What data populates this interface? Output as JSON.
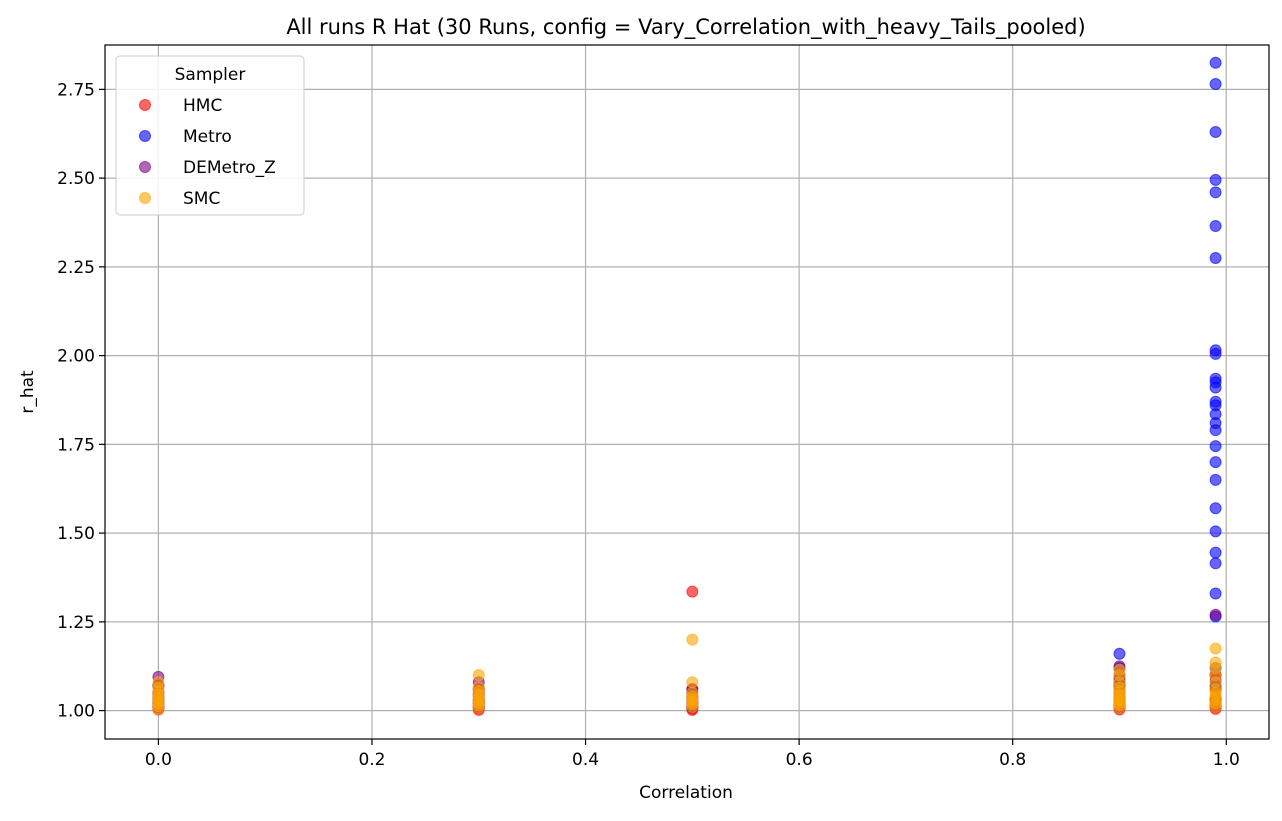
{
  "chart_data": {
    "type": "scatter",
    "title": "All runs R Hat (30 Runs, config = Vary_Correlation_with_heavy_Tails_pooled)",
    "xlabel": "Correlation",
    "ylabel": "r_hat",
    "xlim": [
      -0.05,
      1.04
    ],
    "ylim": [
      0.92,
      2.875
    ],
    "xticks": [
      0.0,
      0.2,
      0.4,
      0.6,
      0.8,
      1.0
    ],
    "xtick_labels": [
      "0.0",
      "0.2",
      "0.4",
      "0.6",
      "0.8",
      "1.0"
    ],
    "yticks": [
      1.0,
      1.25,
      1.5,
      1.75,
      2.0,
      2.25,
      2.5,
      2.75
    ],
    "ytick_labels": [
      "1.00",
      "1.25",
      "1.50",
      "1.75",
      "2.00",
      "2.25",
      "2.50",
      "2.75"
    ],
    "grid": true,
    "legend": {
      "title": "Sampler",
      "placement": "top-left"
    },
    "series": [
      {
        "name": "HMC",
        "color": "#ff0000",
        "points": [
          [
            0.0,
            1.003
          ],
          [
            0.0,
            1.008
          ],
          [
            0.0,
            1.012
          ],
          [
            0.0,
            1.018
          ],
          [
            0.0,
            1.025
          ],
          [
            0.0,
            1.04
          ],
          [
            0.3,
            1.002
          ],
          [
            0.3,
            1.007
          ],
          [
            0.3,
            1.012
          ],
          [
            0.3,
            1.02
          ],
          [
            0.3,
            1.03
          ],
          [
            0.3,
            1.05
          ],
          [
            0.5,
            1.002
          ],
          [
            0.5,
            1.006
          ],
          [
            0.5,
            1.012
          ],
          [
            0.5,
            1.02
          ],
          [
            0.5,
            1.03
          ],
          [
            0.5,
            1.06
          ],
          [
            0.5,
            1.335
          ],
          [
            0.9,
            1.003
          ],
          [
            0.9,
            1.008
          ],
          [
            0.9,
            1.015
          ],
          [
            0.9,
            1.025
          ],
          [
            0.9,
            1.04
          ],
          [
            0.9,
            1.07
          ],
          [
            0.99,
            1.005
          ],
          [
            0.99,
            1.012
          ],
          [
            0.99,
            1.02
          ],
          [
            0.99,
            1.035
          ],
          [
            0.99,
            1.06
          ],
          [
            0.99,
            1.1
          ]
        ]
      },
      {
        "name": "Metro",
        "color": "#0000ff",
        "points": [
          [
            0.0,
            1.01
          ],
          [
            0.0,
            1.02
          ],
          [
            0.0,
            1.035
          ],
          [
            0.0,
            1.05
          ],
          [
            0.0,
            1.07
          ],
          [
            0.3,
            1.01
          ],
          [
            0.3,
            1.02
          ],
          [
            0.3,
            1.03
          ],
          [
            0.3,
            1.045
          ],
          [
            0.3,
            1.06
          ],
          [
            0.5,
            1.01
          ],
          [
            0.5,
            1.02
          ],
          [
            0.5,
            1.035
          ],
          [
            0.5,
            1.05
          ],
          [
            0.9,
            1.01
          ],
          [
            0.9,
            1.02
          ],
          [
            0.9,
            1.035
          ],
          [
            0.9,
            1.05
          ],
          [
            0.9,
            1.07
          ],
          [
            0.9,
            1.09
          ],
          [
            0.9,
            1.12
          ],
          [
            0.9,
            1.16
          ],
          [
            0.99,
            1.03
          ],
          [
            0.99,
            1.07
          ],
          [
            0.99,
            1.12
          ],
          [
            0.99,
            1.265
          ],
          [
            0.99,
            1.33
          ],
          [
            0.99,
            1.415
          ],
          [
            0.99,
            1.445
          ],
          [
            0.99,
            1.505
          ],
          [
            0.99,
            1.57
          ],
          [
            0.99,
            1.65
          ],
          [
            0.99,
            1.7
          ],
          [
            0.99,
            1.745
          ],
          [
            0.99,
            1.79
          ],
          [
            0.99,
            1.81
          ],
          [
            0.99,
            1.835
          ],
          [
            0.99,
            1.86
          ],
          [
            0.99,
            1.87
          ],
          [
            0.99,
            1.91
          ],
          [
            0.99,
            1.925
          ],
          [
            0.99,
            1.935
          ],
          [
            0.99,
            2.005
          ],
          [
            0.99,
            2.015
          ],
          [
            0.99,
            2.275
          ],
          [
            0.99,
            2.365
          ],
          [
            0.99,
            2.46
          ],
          [
            0.99,
            2.495
          ],
          [
            0.99,
            2.63
          ],
          [
            0.99,
            2.765
          ],
          [
            0.99,
            2.825
          ]
        ]
      },
      {
        "name": "DEMetro_Z",
        "color": "#800080",
        "points": [
          [
            0.0,
            1.01
          ],
          [
            0.0,
            1.03
          ],
          [
            0.0,
            1.05
          ],
          [
            0.0,
            1.07
          ],
          [
            0.0,
            1.095
          ],
          [
            0.3,
            1.01
          ],
          [
            0.3,
            1.025
          ],
          [
            0.3,
            1.04
          ],
          [
            0.3,
            1.06
          ],
          [
            0.3,
            1.08
          ],
          [
            0.5,
            1.01
          ],
          [
            0.5,
            1.025
          ],
          [
            0.5,
            1.04
          ],
          [
            0.5,
            1.06
          ],
          [
            0.9,
            1.01
          ],
          [
            0.9,
            1.03
          ],
          [
            0.9,
            1.06
          ],
          [
            0.9,
            1.08
          ],
          [
            0.9,
            1.1
          ],
          [
            0.9,
            1.125
          ],
          [
            0.99,
            1.01
          ],
          [
            0.99,
            1.03
          ],
          [
            0.99,
            1.06
          ],
          [
            0.99,
            1.085
          ],
          [
            0.99,
            1.1
          ],
          [
            0.99,
            1.27
          ]
        ]
      },
      {
        "name": "SMC",
        "color": "#ffa500",
        "points": [
          [
            0.0,
            1.005
          ],
          [
            0.0,
            1.012
          ],
          [
            0.0,
            1.02
          ],
          [
            0.0,
            1.028
          ],
          [
            0.0,
            1.035
          ],
          [
            0.0,
            1.045
          ],
          [
            0.0,
            1.055
          ],
          [
            0.0,
            1.065
          ],
          [
            0.0,
            1.08
          ],
          [
            0.3,
            1.008
          ],
          [
            0.3,
            1.015
          ],
          [
            0.3,
            1.022
          ],
          [
            0.3,
            1.03
          ],
          [
            0.3,
            1.038
          ],
          [
            0.3,
            1.045
          ],
          [
            0.3,
            1.055
          ],
          [
            0.3,
            1.065
          ],
          [
            0.3,
            1.1
          ],
          [
            0.5,
            1.01
          ],
          [
            0.5,
            1.018
          ],
          [
            0.5,
            1.025
          ],
          [
            0.5,
            1.032
          ],
          [
            0.5,
            1.04
          ],
          [
            0.5,
            1.05
          ],
          [
            0.5,
            1.08
          ],
          [
            0.5,
            1.2
          ],
          [
            0.9,
            1.008
          ],
          [
            0.9,
            1.015
          ],
          [
            0.9,
            1.022
          ],
          [
            0.9,
            1.03
          ],
          [
            0.9,
            1.038
          ],
          [
            0.9,
            1.045
          ],
          [
            0.9,
            1.055
          ],
          [
            0.9,
            1.065
          ],
          [
            0.9,
            1.08
          ],
          [
            0.9,
            1.1
          ],
          [
            0.9,
            1.115
          ],
          [
            0.99,
            1.01
          ],
          [
            0.99,
            1.02
          ],
          [
            0.99,
            1.03
          ],
          [
            0.99,
            1.04
          ],
          [
            0.99,
            1.05
          ],
          [
            0.99,
            1.06
          ],
          [
            0.99,
            1.08
          ],
          [
            0.99,
            1.1
          ],
          [
            0.99,
            1.12
          ],
          [
            0.99,
            1.135
          ],
          [
            0.99,
            1.175
          ]
        ]
      }
    ]
  }
}
